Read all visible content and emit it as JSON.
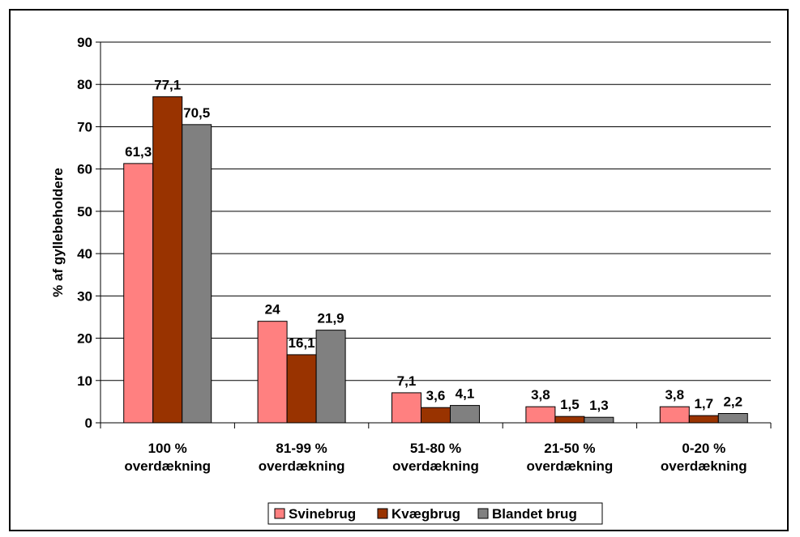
{
  "chart_data": {
    "type": "bar",
    "title": "",
    "xlabel": "",
    "ylabel": "% af gyllebeholdere",
    "ylim": [
      0,
      90
    ],
    "yticks": [
      0,
      10,
      20,
      30,
      40,
      50,
      60,
      70,
      80,
      90
    ],
    "grid": true,
    "legend_position": "bottom",
    "categories": [
      [
        "100 %",
        "overdækning"
      ],
      [
        "81-99 %",
        "overdækning"
      ],
      [
        "51-80 %",
        "overdækning"
      ],
      [
        "21-50 %",
        "overdækning"
      ],
      [
        "0-20 %",
        "overdækning"
      ]
    ],
    "series": [
      {
        "name": "Svinebrug",
        "color": "#FF8080",
        "values": [
          61.3,
          24,
          7.1,
          3.8,
          3.8
        ],
        "labels": [
          "61,3",
          "24",
          "7,1",
          "3,8",
          "3,8"
        ]
      },
      {
        "name": "Kvægbrug",
        "color": "#993300",
        "values": [
          77.1,
          16.1,
          3.6,
          1.5,
          1.7
        ],
        "labels": [
          "77,1",
          "16,1",
          "3,6",
          "1,5",
          "1,7"
        ]
      },
      {
        "name": "Blandet brug",
        "color": "#808080",
        "values": [
          70.5,
          21.9,
          4.1,
          1.3,
          2.2
        ],
        "labels": [
          "70,5",
          "21,9",
          "4,1",
          "1,3",
          "2,2"
        ]
      }
    ]
  }
}
